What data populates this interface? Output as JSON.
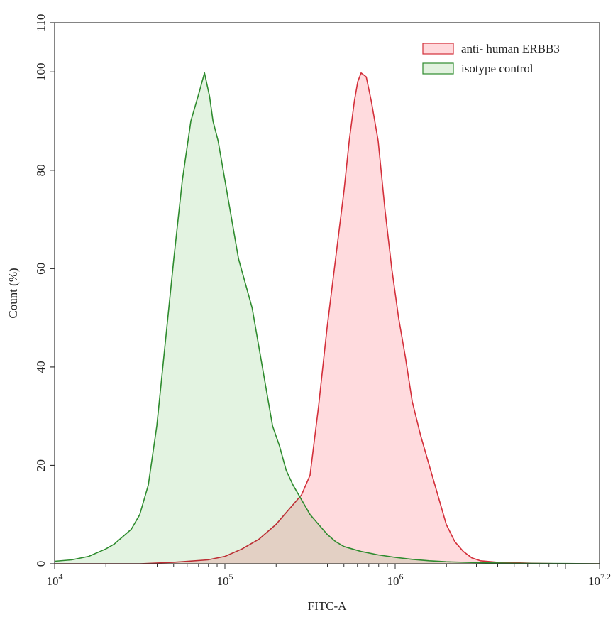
{
  "chart_data": {
    "type": "area",
    "title": "",
    "xlabel": "FITC-A",
    "ylabel": "Count  (%)",
    "x_scale": "log10",
    "xlim": [
      4,
      7.2
    ],
    "ylim": [
      0,
      110
    ],
    "x_ticks": [
      {
        "base": "10",
        "exp": "4",
        "value": 4
      },
      {
        "base": "10",
        "exp": "5",
        "value": 5
      },
      {
        "base": "10",
        "exp": "6",
        "value": 6
      },
      {
        "base": "10",
        "exp": "7.2",
        "value": 7.2
      }
    ],
    "y_ticks": [
      "0",
      "20",
      "40",
      "60",
      "80",
      "100",
      "110"
    ],
    "legend_position": "top-right",
    "series": [
      {
        "name": "anti- human ERBB3",
        "stroke": "#d32f3a",
        "fill": "#ffd9dc",
        "log_x": [
          4.0,
          4.5,
          4.7,
          4.9,
          5.0,
          5.1,
          5.2,
          5.3,
          5.35,
          5.4,
          5.45,
          5.5,
          5.55,
          5.6,
          5.65,
          5.7,
          5.73,
          5.76,
          5.78,
          5.8,
          5.83,
          5.86,
          5.9,
          5.94,
          5.98,
          6.02,
          6.06,
          6.1,
          6.15,
          6.2,
          6.25,
          6.3,
          6.35,
          6.4,
          6.45,
          6.5,
          6.6,
          6.7,
          6.8,
          6.9,
          7.0,
          7.2
        ],
        "y": [
          0,
          0,
          0.3,
          0.8,
          1.5,
          3,
          5,
          8,
          10,
          12,
          14,
          18,
          32,
          48,
          62,
          76,
          86,
          94,
          98,
          99.8,
          99,
          94,
          86,
          72,
          60,
          50,
          42,
          33,
          26,
          20,
          14,
          8,
          4.5,
          2.5,
          1.2,
          0.6,
          0.3,
          0.2,
          0.1,
          0.05,
          0,
          0
        ]
      },
      {
        "name": "isotype control",
        "stroke": "#2e8b2e",
        "fill": "#e2f2df",
        "log_x": [
          4.0,
          4.1,
          4.2,
          4.3,
          4.35,
          4.4,
          4.45,
          4.5,
          4.55,
          4.6,
          4.65,
          4.7,
          4.75,
          4.8,
          4.85,
          4.88,
          4.91,
          4.93,
          4.96,
          5.0,
          5.04,
          5.08,
          5.12,
          5.16,
          5.2,
          5.24,
          5.28,
          5.32,
          5.36,
          5.4,
          5.45,
          5.5,
          5.55,
          5.6,
          5.65,
          5.7,
          5.8,
          5.9,
          6.0,
          6.1,
          6.2,
          6.3,
          6.5,
          6.7,
          7.0,
          7.2
        ],
        "y": [
          0.5,
          0.8,
          1.5,
          3,
          4,
          5.5,
          7,
          10,
          16,
          28,
          45,
          62,
          78,
          90,
          96,
          99.8,
          95,
          90,
          86,
          78,
          70,
          62,
          57,
          52,
          44,
          36,
          28,
          24,
          19,
          16,
          13,
          10,
          8,
          6,
          4.5,
          3.5,
          2.5,
          1.8,
          1.3,
          0.9,
          0.6,
          0.4,
          0.2,
          0.1,
          0.05,
          0
        ]
      }
    ]
  }
}
